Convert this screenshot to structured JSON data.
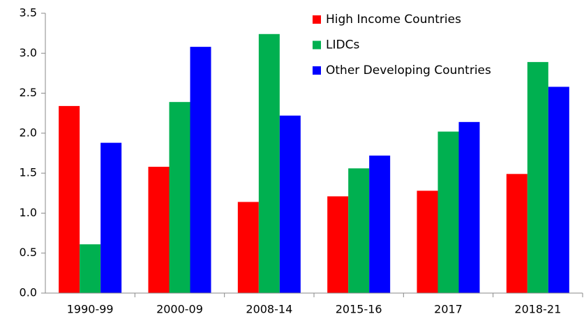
{
  "chart_data": {
    "type": "bar",
    "categories": [
      "1990-99",
      "2000-09",
      "2008-14",
      "2015-16",
      "2017",
      "2018-21"
    ],
    "series": [
      {
        "name": "High Income Countries",
        "color": "#ff0000",
        "values": [
          2.34,
          1.58,
          1.14,
          1.21,
          1.28,
          1.49
        ]
      },
      {
        "name": "LIDCs",
        "color": "#00b050",
        "values": [
          0.61,
          2.39,
          3.24,
          1.56,
          2.02,
          2.89
        ]
      },
      {
        "name": "Other Developing Countries",
        "color": "#0000ff",
        "values": [
          1.88,
          3.08,
          2.22,
          1.72,
          2.14,
          2.58
        ]
      }
    ],
    "ylim": [
      0,
      3.5
    ],
    "yticks": [
      {
        "value": 0,
        "label": "0.0"
      },
      0.5,
      {
        "value": 1,
        "label": "1.0"
      },
      1.5,
      {
        "value": 2,
        "label": "2.0"
      },
      2.5,
      {
        "value": 3,
        "label": "3.0"
      },
      3.5
    ],
    "grid": false,
    "legend": "top-right"
  }
}
